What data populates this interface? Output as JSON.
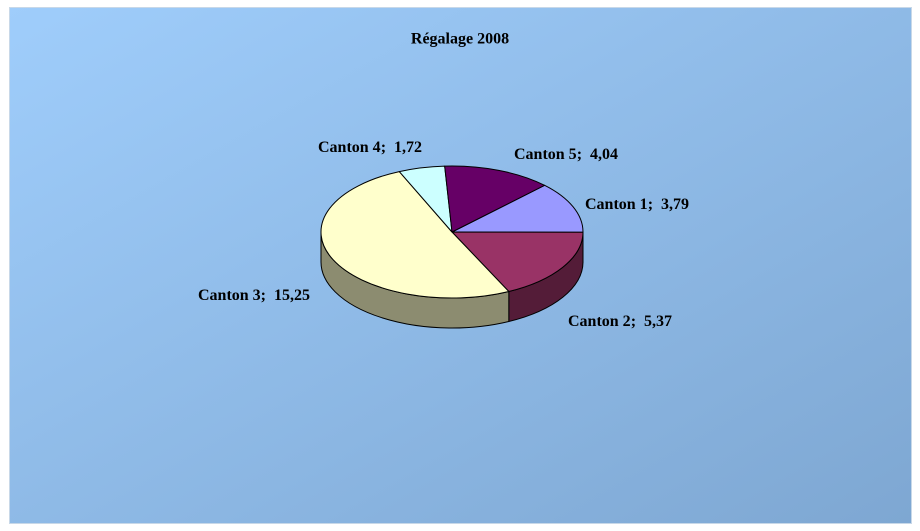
{
  "chart_data": {
    "type": "pie3d",
    "title": "Régalage 2008",
    "categories": [
      "Canton 1",
      "Canton 2",
      "Canton 3",
      "Canton 4",
      "Canton 5"
    ],
    "values": [
      3.79,
      5.37,
      15.25,
      1.72,
      4.04
    ],
    "value_labels": [
      "3,79",
      "5,37",
      "15,25",
      "1,72",
      "4,04"
    ],
    "label_separator": ";",
    "colors": [
      "#9999ff",
      "#993366",
      "#ffffcc",
      "#ccffff",
      "#660066"
    ]
  }
}
